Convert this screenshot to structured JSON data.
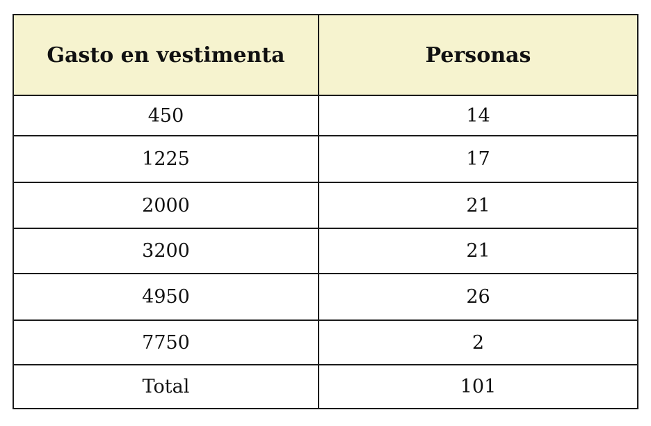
{
  "table": {
    "headers": [
      "Gasto en vestimenta",
      "Personas"
    ],
    "rows": [
      [
        "450",
        "14"
      ],
      [
        "1225",
        "17"
      ],
      [
        "2000",
        "21"
      ],
      [
        "3200",
        "21"
      ],
      [
        "4950",
        "26"
      ],
      [
        "7750",
        "2"
      ]
    ],
    "total": [
      "Total",
      "101"
    ],
    "header_bg_color": "#f6f3cf",
    "border_color": "#1a1a1a"
  },
  "chart_data": {
    "type": "table",
    "columns": [
      "Gasto en vestimenta",
      "Personas"
    ],
    "rows": [
      [
        450,
        14
      ],
      [
        1225,
        17
      ],
      [
        2000,
        21
      ],
      [
        3200,
        21
      ],
      [
        4950,
        26
      ],
      [
        7750,
        2
      ]
    ],
    "total": [
      "Total",
      101
    ]
  }
}
